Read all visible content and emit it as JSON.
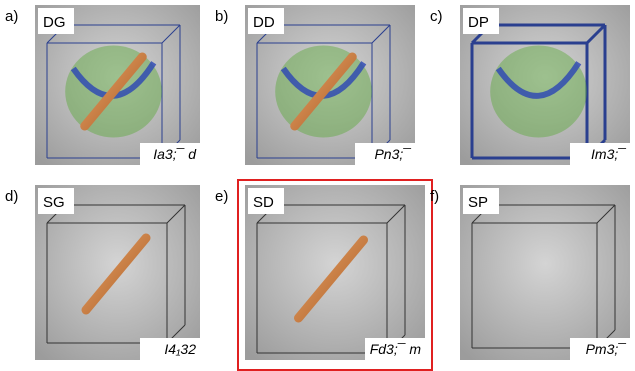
{
  "panels": [
    {
      "letter": "a)",
      "name": "DG",
      "group": "Ia3;¯ d"
    },
    {
      "letter": "b)",
      "name": "DD",
      "group": "Pn3;¯"
    },
    {
      "letter": "c)",
      "name": "DP",
      "group": "Im3;¯"
    },
    {
      "letter": "d)",
      "name": "SG",
      "group": "I4₁32"
    },
    {
      "letter": "e)",
      "name": "SD",
      "group": "Fd3;¯ m"
    },
    {
      "letter": "f)",
      "name": "SP",
      "group": "Pm3;¯"
    }
  ]
}
